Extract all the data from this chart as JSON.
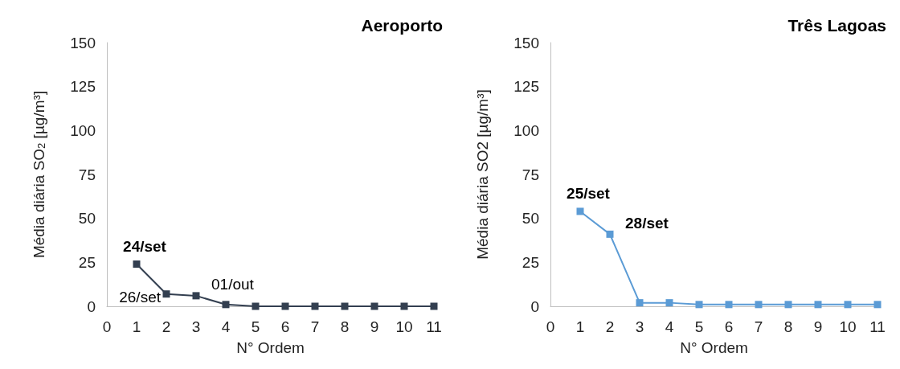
{
  "chart_data": [
    {
      "type": "line",
      "title": "Aeroporto",
      "xlabel": "N° Ordem",
      "ylabel": "Média diária SO$_{2}$ [µg/m³]",
      "x": [
        1,
        2,
        3,
        4,
        5,
        6,
        7,
        8,
        9,
        10,
        11
      ],
      "series": [
        {
          "color": "#333f50",
          "values": [
            24,
            7,
            6,
            1,
            0,
            0,
            0,
            0,
            0,
            0,
            0
          ]
        }
      ],
      "xlim": [
        0,
        11
      ],
      "xticks": [
        0,
        1,
        2,
        3,
        4,
        5,
        6,
        7,
        8,
        9,
        10,
        11
      ],
      "ylim": [
        0,
        150
      ],
      "yticks": [
        0,
        25,
        50,
        75,
        100,
        125,
        150
      ],
      "grid": false,
      "marker": "square",
      "line_style": "solid",
      "annotations": [
        {
          "text": "24/set",
          "x": 1,
          "y": 24
        },
        {
          "text": "26/set",
          "x": 2,
          "y": 7
        },
        {
          "text": "01/out",
          "x": 3,
          "y": 6
        }
      ]
    },
    {
      "type": "line",
      "title": "Três Lagoas",
      "xlabel": "N° Ordem",
      "ylabel": "Média diária SO2 [µg/m³]",
      "x": [
        1,
        2,
        3,
        4,
        5,
        6,
        7,
        8,
        9,
        10,
        11
      ],
      "series": [
        {
          "color": "#5b9bd5",
          "values": [
            54,
            41,
            2,
            2,
            1,
            1,
            1,
            1,
            1,
            1,
            1
          ]
        }
      ],
      "xlim": [
        0,
        11
      ],
      "xticks": [
        0,
        1,
        2,
        3,
        4,
        5,
        6,
        7,
        8,
        9,
        10,
        11
      ],
      "ylim": [
        0,
        150
      ],
      "yticks": [
        0,
        25,
        50,
        75,
        100,
        125,
        150
      ],
      "grid": false,
      "marker": "square",
      "line_style": "solid",
      "annotations": [
        {
          "text": "25/set",
          "x": 1,
          "y": 54
        },
        {
          "text": "28/set",
          "x": 2,
          "y": 41
        }
      ]
    }
  ]
}
